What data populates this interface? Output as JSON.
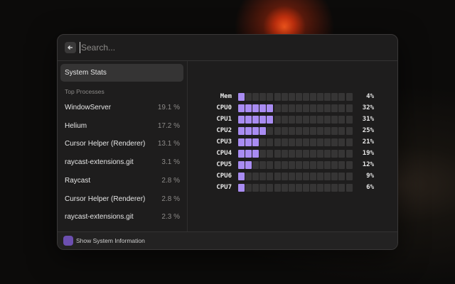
{
  "search": {
    "placeholder": "Search..."
  },
  "sidebar": {
    "selected": "System Stats",
    "section": "Top Processes",
    "processes": [
      {
        "name": "WindowServer",
        "usage": "19.1 %"
      },
      {
        "name": "Helium",
        "usage": "17.2 %"
      },
      {
        "name": "Cursor Helper (Renderer)",
        "usage": "13.1 %"
      },
      {
        "name": "raycast-extensions.git",
        "usage": "3.1 %"
      },
      {
        "name": "Raycast",
        "usage": "2.8 %"
      },
      {
        "name": "Cursor Helper (Renderer)",
        "usage": "2.8 %"
      },
      {
        "name": "raycast-extensions.git",
        "usage": "2.3 %"
      }
    ]
  },
  "meters": [
    {
      "label": "Mem",
      "value": 4,
      "value_label": "4%"
    },
    {
      "label": "CPU0",
      "value": 32,
      "value_label": "32%"
    },
    {
      "label": "CPU1",
      "value": 31,
      "value_label": "31%"
    },
    {
      "label": "CPU2",
      "value": 25,
      "value_label": "25%"
    },
    {
      "label": "CPU3",
      "value": 21,
      "value_label": "21%"
    },
    {
      "label": "CPU4",
      "value": 19,
      "value_label": "19%"
    },
    {
      "label": "CPU5",
      "value": 12,
      "value_label": "12%"
    },
    {
      "label": "CPU6",
      "value": 9,
      "value_label": "9%"
    },
    {
      "label": "CPU7",
      "value": 6,
      "value_label": "6%"
    }
  ],
  "footer": {
    "action": "Show System Information"
  }
}
